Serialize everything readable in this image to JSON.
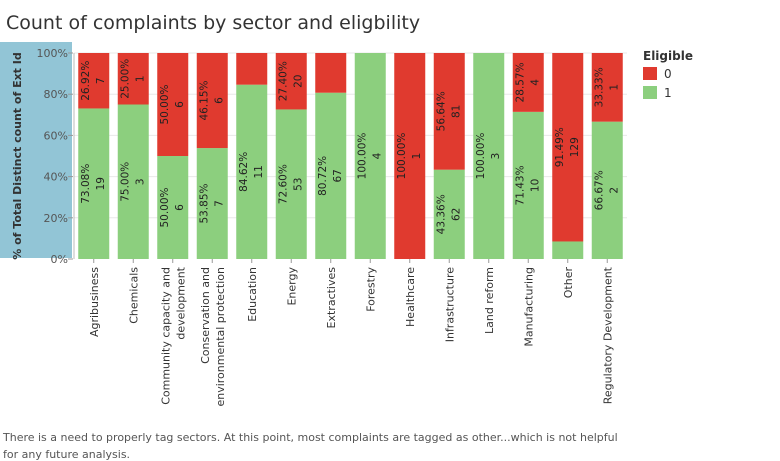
{
  "chart_data": {
    "type": "bar",
    "stacked": true,
    "title": "Count of complaints by sector and eligbility",
    "ylabel": "% of Total Distinct count of Ext Id",
    "xlabel": "",
    "ylim": [
      0,
      100
    ],
    "yticks": [
      "0%",
      "20%",
      "40%",
      "60%",
      "80%",
      "100%"
    ],
    "grid": true,
    "legend": {
      "title": "Eligible",
      "position": "top-right"
    },
    "categories": [
      [
        "Agribusiness"
      ],
      [
        "Chemicals"
      ],
      [
        "Community capacity and",
        "development"
      ],
      [
        "Conservation and",
        "environmental protection"
      ],
      [
        "Education"
      ],
      [
        "Energy"
      ],
      [
        "Extractives"
      ],
      [
        "Forestry"
      ],
      [
        "Healthcare"
      ],
      [
        "Infrastructure"
      ],
      [
        "Land reform"
      ],
      [
        "Manufacturing"
      ],
      [
        "Other"
      ],
      [
        "Regulatory Development"
      ]
    ],
    "series": [
      {
        "name": "1",
        "color": "#8ccf7e",
        "values": [
          73.08,
          75.0,
          50.0,
          53.85,
          84.62,
          72.6,
          80.72,
          100.0,
          0,
          43.36,
          100.0,
          71.43,
          8.51,
          66.67
        ],
        "pct_labels": [
          "73.08%",
          "75.00%",
          "50.00%",
          "53.85%",
          "84.62%",
          "72.60%",
          "80.72%",
          "100.00%",
          "",
          "43.36%",
          "100.00%",
          "71.43%",
          "",
          "66.67%"
        ],
        "counts": [
          "19",
          "3",
          "6",
          "7",
          "11",
          "53",
          "67",
          "4",
          "",
          "62",
          "3",
          "10",
          "",
          "2"
        ]
      },
      {
        "name": "0",
        "color": "#e03a2f",
        "values": [
          26.92,
          25.0,
          50.0,
          46.15,
          15.38,
          27.4,
          19.28,
          0,
          100.0,
          56.64,
          0,
          28.57,
          91.49,
          33.33
        ],
        "pct_labels": [
          "26.92%",
          "25.00%",
          "50.00%",
          "46.15%",
          "",
          "27.40%",
          "",
          "",
          "100.00%",
          "56.64%",
          "",
          "28.57%",
          "91.49%",
          "33.33%"
        ],
        "counts": [
          "7",
          "1",
          "6",
          "6",
          "",
          "20",
          "",
          "",
          "1",
          "81",
          "",
          "4",
          "129",
          "1"
        ]
      }
    ]
  },
  "caption": {
    "line1": "There is a need to properly tag sectors. At this point, most complaints are tagged as other...which is not helpful",
    "line2": "for any future analysis."
  },
  "colors": {
    "eligible": "#8ccf7e",
    "not_eligible": "#e03a2f",
    "axis_band": "#92c5d6"
  }
}
